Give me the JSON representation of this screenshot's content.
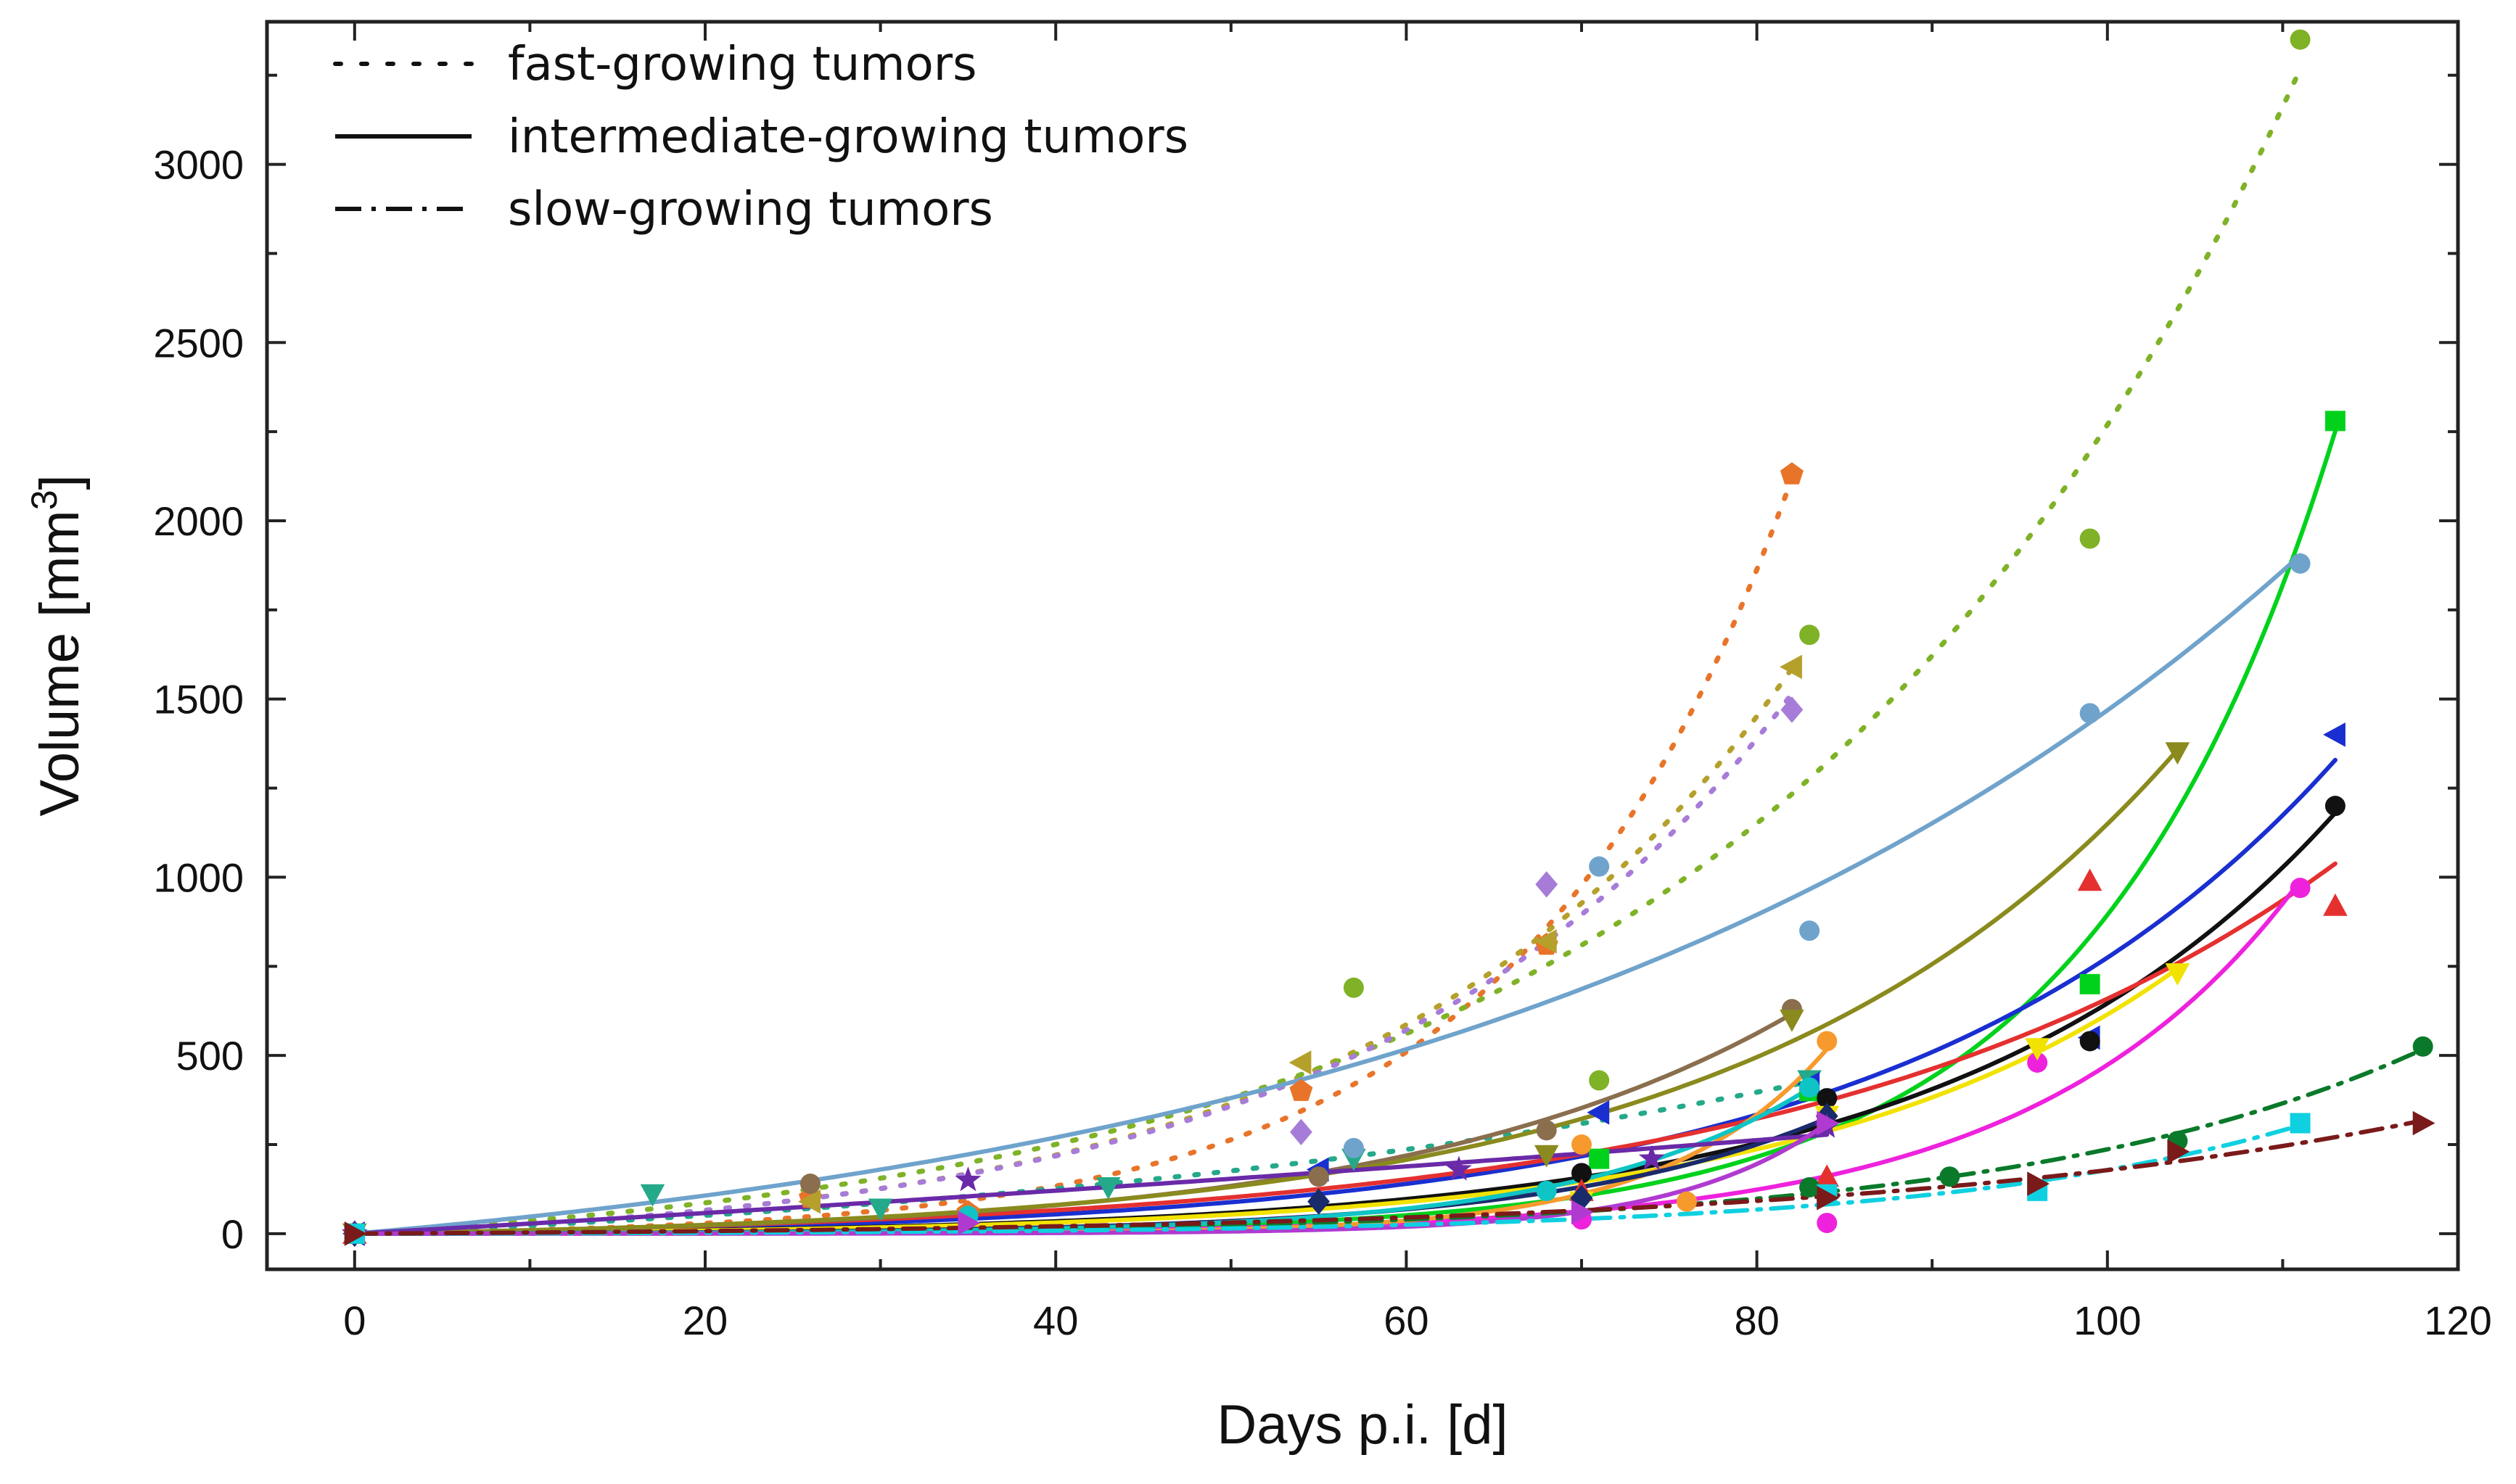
{
  "chart_data": {
    "type": "scatter",
    "title": "",
    "xlabel": "Days p.i. [d]",
    "ylabel_main": "Volume [mm",
    "ylabel_sup": "3",
    "ylabel_close": "]",
    "xlim": [
      -5,
      120
    ],
    "ylim": [
      -100,
      3400
    ],
    "xticks": [
      0,
      20,
      40,
      60,
      80,
      100,
      120
    ],
    "xtick_labels": [
      "0",
      "20",
      "40",
      "60",
      "80",
      "100",
      "120"
    ],
    "yticks": [
      0,
      500,
      1000,
      1500,
      2000,
      2500,
      3000
    ],
    "ytick_labels": [
      "0",
      "500",
      "1000",
      "1500",
      "2000",
      "2500",
      "3000"
    ],
    "legend": [
      {
        "label": "fast-growing tumors",
        "style": "dotted"
      },
      {
        "label": "intermediate-growing tumors",
        "style": "solid"
      },
      {
        "label": "slow-growing tumors",
        "style": "dashdot"
      }
    ],
    "series": [
      {
        "group": "fast",
        "color": "#e8742a",
        "marker": "pentagon",
        "fit_end": 82,
        "points": [
          [
            0,
            0
          ],
          [
            26,
            100
          ],
          [
            35,
            60
          ],
          [
            54,
            400
          ],
          [
            68,
            810
          ],
          [
            82,
            2130
          ]
        ]
      },
      {
        "group": "fast",
        "color": "#b5a02c",
        "marker": "triangle-left",
        "fit_end": 82,
        "points": [
          [
            0,
            0
          ],
          [
            26,
            90
          ],
          [
            54,
            480
          ],
          [
            68,
            820
          ],
          [
            82,
            1590
          ]
        ]
      },
      {
        "group": "fast",
        "color": "#7fb227",
        "marker": "circle",
        "fit_end": 111,
        "points": [
          [
            0,
            0
          ],
          [
            57,
            690
          ],
          [
            71,
            430
          ],
          [
            83,
            1680
          ],
          [
            99,
            1950
          ],
          [
            111,
            3350
          ]
        ]
      },
      {
        "group": "fast",
        "color": "#a77cd8",
        "marker": "diamond",
        "fit_end": 82,
        "points": [
          [
            0,
            0
          ],
          [
            54,
            285
          ],
          [
            68,
            980
          ],
          [
            82,
            1470
          ]
        ]
      },
      {
        "group": "fast",
        "color": "#24a98a",
        "marker": "triangle-down",
        "fit_end": 83,
        "points": [
          [
            0,
            0
          ],
          [
            17,
            110
          ],
          [
            30,
            70
          ],
          [
            43,
            130
          ],
          [
            57,
            210
          ],
          [
            83,
            430
          ]
        ]
      },
      {
        "group": "intermediate",
        "color": "#00d21c",
        "marker": "square",
        "fit_end": 113,
        "points": [
          [
            0,
            0
          ],
          [
            71,
            210
          ],
          [
            83,
            400
          ],
          [
            99,
            700
          ],
          [
            113,
            2280
          ]
        ]
      },
      {
        "group": "intermediate",
        "color": "#6fa3cc",
        "marker": "circle",
        "fit_end": 111,
        "points": [
          [
            0,
            0
          ],
          [
            57,
            240
          ],
          [
            71,
            1030
          ],
          [
            83,
            850
          ],
          [
            99,
            1460
          ],
          [
            111,
            1880
          ]
        ]
      },
      {
        "group": "intermediate",
        "color": "#1a2fd0",
        "marker": "triangle-left",
        "fit_end": 113,
        "points": [
          [
            0,
            0
          ],
          [
            55,
            180
          ],
          [
            71,
            340
          ],
          [
            83,
            420
          ],
          [
            99,
            550
          ],
          [
            113,
            1400
          ]
        ]
      },
      {
        "group": "intermediate",
        "color": "#111111",
        "marker": "circle",
        "fit_end": 113,
        "points": [
          [
            0,
            0
          ],
          [
            70,
            170
          ],
          [
            84,
            380
          ],
          [
            99,
            540
          ],
          [
            113,
            1200
          ]
        ]
      },
      {
        "group": "intermediate",
        "color": "#e53030",
        "marker": "triangle-up",
        "fit_end": 113,
        "points": [
          [
            0,
            0
          ],
          [
            70,
            120
          ],
          [
            84,
            160
          ],
          [
            99,
            990
          ],
          [
            113,
            920
          ]
        ]
      },
      {
        "group": "intermediate",
        "color": "#ee22dd",
        "marker": "circle",
        "fit_end": 111,
        "points": [
          [
            0,
            0
          ],
          [
            70,
            40
          ],
          [
            84,
            30
          ],
          [
            96,
            480
          ],
          [
            111,
            970
          ]
        ]
      },
      {
        "group": "intermediate",
        "color": "#f2e200",
        "marker": "triangle-down",
        "fit_end": 104,
        "points": [
          [
            0,
            0
          ],
          [
            70,
            90
          ],
          [
            84,
            330
          ],
          [
            96,
            520
          ],
          [
            104,
            730
          ]
        ]
      },
      {
        "group": "intermediate",
        "color": "#8a6e4e",
        "marker": "circle",
        "fit_end": 82,
        "points": [
          [
            0,
            0
          ],
          [
            26,
            140
          ],
          [
            55,
            160
          ],
          [
            68,
            290
          ],
          [
            82,
            630
          ]
        ]
      },
      {
        "group": "intermediate",
        "color": "#8a8a1e",
        "marker": "triangle-down",
        "fit_end": 104,
        "points": [
          [
            0,
            0
          ],
          [
            68,
            220
          ],
          [
            82,
            600
          ],
          [
            104,
            1350
          ]
        ]
      },
      {
        "group": "intermediate",
        "color": "#f79a2e",
        "marker": "circle",
        "fit_end": 84,
        "points": [
          [
            0,
            0
          ],
          [
            70,
            250
          ],
          [
            76,
            90
          ],
          [
            84,
            540
          ]
        ]
      },
      {
        "group": "intermediate",
        "color": "#1a2b6b",
        "marker": "diamond",
        "fit_end": 84,
        "points": [
          [
            0,
            0
          ],
          [
            55,
            90
          ],
          [
            70,
            100
          ],
          [
            84,
            330
          ]
        ]
      },
      {
        "group": "intermediate",
        "color": "#0fc4c4",
        "marker": "circle",
        "fit_end": 83,
        "points": [
          [
            0,
            0
          ],
          [
            35,
            50
          ],
          [
            68,
            120
          ],
          [
            83,
            410
          ]
        ]
      },
      {
        "group": "intermediate",
        "color": "#6a2aa8",
        "marker": "star",
        "fit_end": 84,
        "points": [
          [
            0,
            0
          ],
          [
            35,
            150
          ],
          [
            63,
            180
          ],
          [
            74,
            210
          ],
          [
            84,
            300
          ]
        ]
      },
      {
        "group": "intermediate",
        "color": "#b03ad0",
        "marker": "triangle-right",
        "fit_end": 84,
        "points": [
          [
            0,
            0
          ],
          [
            35,
            30
          ],
          [
            70,
            60
          ],
          [
            84,
            310
          ]
        ]
      },
      {
        "group": "slow",
        "color": "#0a7a2a",
        "marker": "circle",
        "fit_end": 118,
        "points": [
          [
            0,
            0
          ],
          [
            83,
            130
          ],
          [
            91,
            160
          ],
          [
            104,
            260
          ],
          [
            118,
            525
          ]
        ]
      },
      {
        "group": "slow",
        "color": "#0fd0e0",
        "marker": "square",
        "fit_end": 111,
        "points": [
          [
            0,
            0
          ],
          [
            84,
            110
          ],
          [
            96,
            120
          ],
          [
            111,
            310
          ]
        ]
      },
      {
        "group": "slow",
        "color": "#7a1a1a",
        "marker": "triangle-right",
        "fit_end": 118,
        "points": [
          [
            0,
            0
          ],
          [
            84,
            100
          ],
          [
            96,
            140
          ],
          [
            104,
            230
          ],
          [
            118,
            310
          ]
        ]
      }
    ]
  }
}
